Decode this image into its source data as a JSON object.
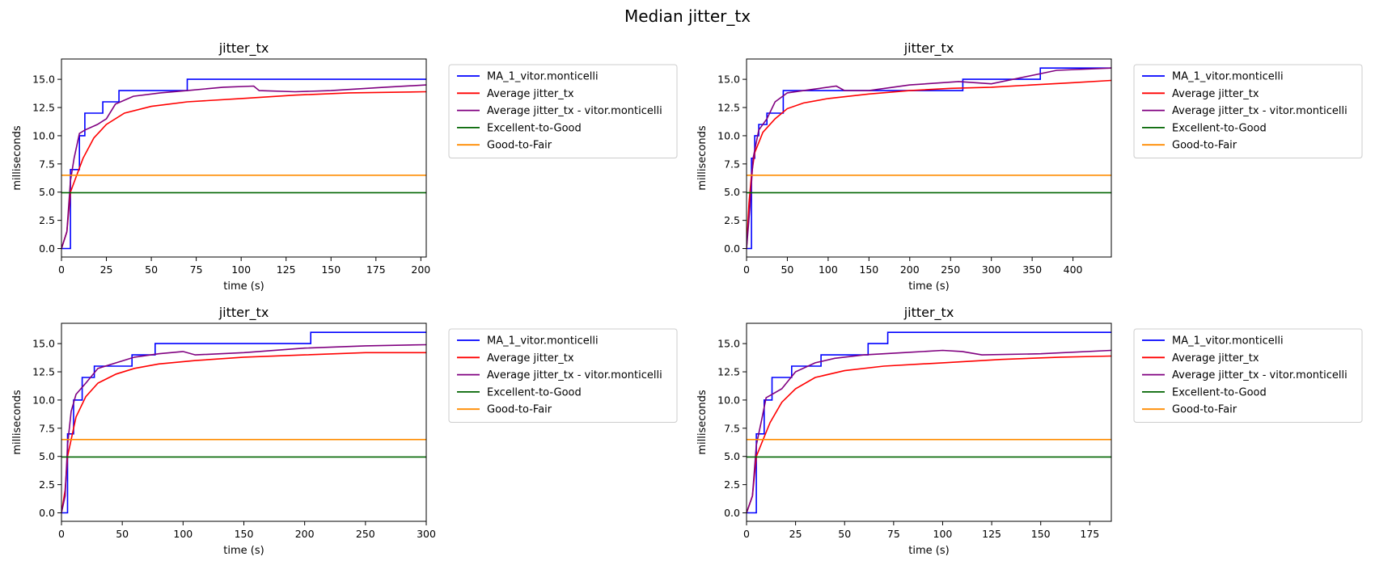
{
  "figure": {
    "title": "Median jitter_tx"
  },
  "colors": {
    "MA_1_vitor.monticelli": "#0000ff",
    "Average jitter_tx": "#ff0000",
    "Average jitter_tx - vitor.monticelli": "#800080",
    "Excellent-to-Good": "#006400",
    "Good-to-Fair": "#ff8c00"
  },
  "chart_data": [
    {
      "type": "line",
      "title": "jitter_tx",
      "xlabel": "time (s)",
      "ylabel": "milliseconds",
      "xlim": [
        0,
        203
      ],
      "ylim": [
        -0.75,
        16.8
      ],
      "xticks": [
        0,
        25,
        50,
        75,
        100,
        125,
        150,
        175,
        200
      ],
      "yticks": [
        0.0,
        2.5,
        5.0,
        7.5,
        10.0,
        12.5,
        15.0
      ],
      "legend": "outside-right-top",
      "series": [
        {
          "name": "MA_1_vitor.monticelli",
          "step": true,
          "x": [
            0,
            4,
            5,
            10,
            13,
            23,
            32,
            70,
            203
          ],
          "y": [
            0,
            0,
            7,
            10,
            12,
            13,
            14,
            15,
            15
          ]
        },
        {
          "name": "Average jitter_tx",
          "x": [
            0,
            3,
            5,
            8,
            12,
            18,
            25,
            35,
            50,
            70,
            100,
            130,
            160,
            203
          ],
          "y": [
            0,
            1.5,
            5,
            6.3,
            8,
            9.8,
            11,
            12,
            12.6,
            13,
            13.3,
            13.6,
            13.8,
            13.9
          ]
        },
        {
          "name": "Average jitter_tx - vitor.monticelli",
          "x": [
            0,
            3,
            5,
            7,
            10,
            13,
            20,
            25,
            30,
            40,
            55,
            70,
            90,
            107,
            110,
            130,
            150,
            180,
            203
          ],
          "y": [
            0,
            1.5,
            6,
            8,
            10.2,
            10.5,
            11,
            11.5,
            12.8,
            13.5,
            13.8,
            14,
            14.3,
            14.4,
            14,
            13.9,
            14,
            14.3,
            14.5
          ]
        },
        {
          "name": "Excellent-to-Good",
          "x": [
            0,
            203
          ],
          "y": [
            4.95,
            4.95
          ]
        },
        {
          "name": "Good-to-Fair",
          "x": [
            0,
            203
          ],
          "y": [
            6.5,
            6.5
          ]
        }
      ]
    },
    {
      "type": "line",
      "title": "jitter_tx",
      "xlabel": "time (s)",
      "ylabel": "milliseconds",
      "xlim": [
        0,
        447
      ],
      "ylim": [
        -0.75,
        16.8
      ],
      "xticks": [
        0,
        50,
        100,
        150,
        200,
        250,
        300,
        350,
        400
      ],
      "yticks": [
        0.0,
        2.5,
        5.0,
        7.5,
        10.0,
        12.5,
        15.0
      ],
      "legend": "outside-right-top",
      "series": [
        {
          "name": "MA_1_vitor.monticelli",
          "step": true,
          "x": [
            0,
            4,
            6,
            10,
            15,
            25,
            45,
            265,
            360,
            447
          ],
          "y": [
            0,
            0,
            8,
            10,
            11,
            12,
            14,
            15,
            16,
            16
          ]
        },
        {
          "name": "Average jitter_tx",
          "x": [
            0,
            3,
            6,
            10,
            20,
            35,
            50,
            70,
            100,
            150,
            200,
            250,
            300,
            350,
            400,
            447
          ],
          "y": [
            0,
            4,
            6.5,
            8.5,
            10.3,
            11.5,
            12.4,
            12.9,
            13.3,
            13.7,
            14,
            14.2,
            14.3,
            14.5,
            14.7,
            14.9
          ]
        },
        {
          "name": "Average jitter_tx - vitor.monticelli",
          "x": [
            0,
            4,
            8,
            15,
            25,
            35,
            50,
            70,
            90,
            110,
            120,
            150,
            200,
            260,
            300,
            380,
            447
          ],
          "y": [
            0,
            3.5,
            8,
            10.5,
            11.5,
            13,
            13.8,
            14,
            14.2,
            14.4,
            14,
            14,
            14.5,
            14.8,
            14.6,
            15.8,
            16
          ]
        },
        {
          "name": "Excellent-to-Good",
          "x": [
            0,
            447
          ],
          "y": [
            4.95,
            4.95
          ]
        },
        {
          "name": "Good-to-Fair",
          "x": [
            0,
            447
          ],
          "y": [
            6.5,
            6.5
          ]
        }
      ]
    },
    {
      "type": "line",
      "title": "jitter_tx",
      "xlabel": "time (s)",
      "ylabel": "milliseconds",
      "xlim": [
        0,
        300
      ],
      "ylim": [
        -0.75,
        16.8
      ],
      "xticks": [
        0,
        50,
        100,
        150,
        200,
        250,
        300
      ],
      "yticks": [
        0.0,
        2.5,
        5.0,
        7.5,
        10.0,
        12.5,
        15.0
      ],
      "legend": "outside-right-top",
      "series": [
        {
          "name": "MA_1_vitor.monticelli",
          "step": true,
          "x": [
            0,
            4,
            5,
            10,
            17,
            27,
            58,
            77,
            205,
            300
          ],
          "y": [
            0,
            0,
            7,
            10,
            12,
            13,
            14,
            15,
            16,
            16
          ]
        },
        {
          "name": "Average jitter_tx",
          "x": [
            0,
            3,
            5,
            8,
            12,
            20,
            30,
            45,
            60,
            80,
            110,
            150,
            200,
            250,
            300
          ],
          "y": [
            0,
            2,
            5,
            6.5,
            8.5,
            10.3,
            11.5,
            12.3,
            12.8,
            13.2,
            13.5,
            13.8,
            14,
            14.2,
            14.2
          ]
        },
        {
          "name": "Average jitter_tx - vitor.monticelli",
          "x": [
            0,
            3,
            5,
            8,
            12,
            20,
            30,
            45,
            60,
            80,
            100,
            110,
            150,
            200,
            250,
            300
          ],
          "y": [
            0,
            1.5,
            6,
            9,
            10.5,
            11.5,
            12.8,
            13.3,
            13.8,
            14.1,
            14.3,
            14,
            14.2,
            14.6,
            14.8,
            14.9
          ]
        },
        {
          "name": "Excellent-to-Good",
          "x": [
            0,
            300
          ],
          "y": [
            4.95,
            4.95
          ]
        },
        {
          "name": "Good-to-Fair",
          "x": [
            0,
            300
          ],
          "y": [
            6.5,
            6.5
          ]
        }
      ]
    },
    {
      "type": "line",
      "title": "jitter_tx",
      "xlabel": "time (s)",
      "ylabel": "milliseconds",
      "xlim": [
        0,
        186
      ],
      "ylim": [
        -0.75,
        16.8
      ],
      "xticks": [
        0,
        25,
        50,
        75,
        100,
        125,
        150,
        175
      ],
      "yticks": [
        0.0,
        2.5,
        5.0,
        7.5,
        10.0,
        12.5,
        15.0
      ],
      "legend": "outside-right-top",
      "series": [
        {
          "name": "MA_1_vitor.monticelli",
          "step": true,
          "x": [
            0,
            4,
            5,
            9,
            13,
            23,
            38,
            62,
            72,
            186
          ],
          "y": [
            0,
            0,
            7,
            10,
            12,
            13,
            14,
            15,
            16,
            16
          ]
        },
        {
          "name": "Average jitter_tx",
          "x": [
            0,
            3,
            5,
            8,
            12,
            18,
            25,
            35,
            50,
            70,
            100,
            130,
            160,
            186
          ],
          "y": [
            0,
            1.5,
            5,
            6.3,
            8,
            9.8,
            11,
            12,
            12.6,
            13,
            13.3,
            13.6,
            13.8,
            13.9
          ]
        },
        {
          "name": "Average jitter_tx - vitor.monticelli",
          "x": [
            0,
            3,
            5,
            8,
            10,
            13,
            18,
            25,
            35,
            45,
            60,
            80,
            100,
            110,
            120,
            150,
            186
          ],
          "y": [
            0,
            1.5,
            6,
            8.5,
            10.2,
            10.5,
            11,
            12.5,
            13.3,
            13.7,
            14,
            14.2,
            14.4,
            14.3,
            14,
            14.1,
            14.4
          ]
        },
        {
          "name": "Excellent-to-Good",
          "x": [
            0,
            186
          ],
          "y": [
            4.95,
            4.95
          ]
        },
        {
          "name": "Good-to-Fair",
          "x": [
            0,
            186
          ],
          "y": [
            6.5,
            6.5
          ]
        }
      ]
    }
  ]
}
